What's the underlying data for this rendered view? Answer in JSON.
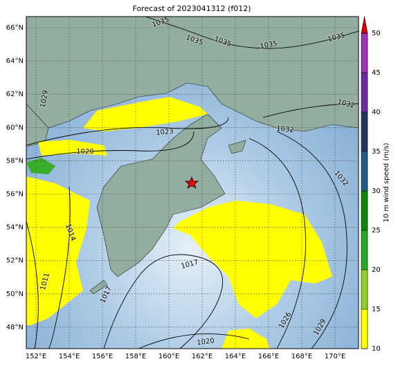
{
  "title": "Forecast of 2023041312 (f012)",
  "lat_labels": [
    "66°N",
    "64°N",
    "62°N",
    "60°N",
    "58°N",
    "56°N",
    "54°N",
    "52°N",
    "50°N",
    "48°N"
  ],
  "lon_labels": [
    "152°E",
    "154°E",
    "156°E",
    "158°E",
    "160°E",
    "162°E",
    "164°E",
    "166°E",
    "168°E",
    "170°E"
  ],
  "colorbar": {
    "label": "10 m wind speed (m/s)",
    "ticks": [
      10,
      15,
      20,
      25,
      30,
      35,
      40,
      45,
      50
    ],
    "colors": [
      "#ffff00",
      "#8fd12a",
      "#2aa82a",
      "#0b870b",
      "#1e5c86",
      "#22365f",
      "#6b2aa3",
      "#9b34b9"
    ],
    "extend_color": "#e00000"
  },
  "contour_labels": [
    "1035",
    "1035",
    "1035",
    "1035",
    "1035",
    "1029",
    "1032",
    "1032",
    "1023",
    "1020",
    "1032",
    "1014",
    "1017",
    "1011",
    "1017",
    "1020",
    "1026",
    "1029"
  ]
}
